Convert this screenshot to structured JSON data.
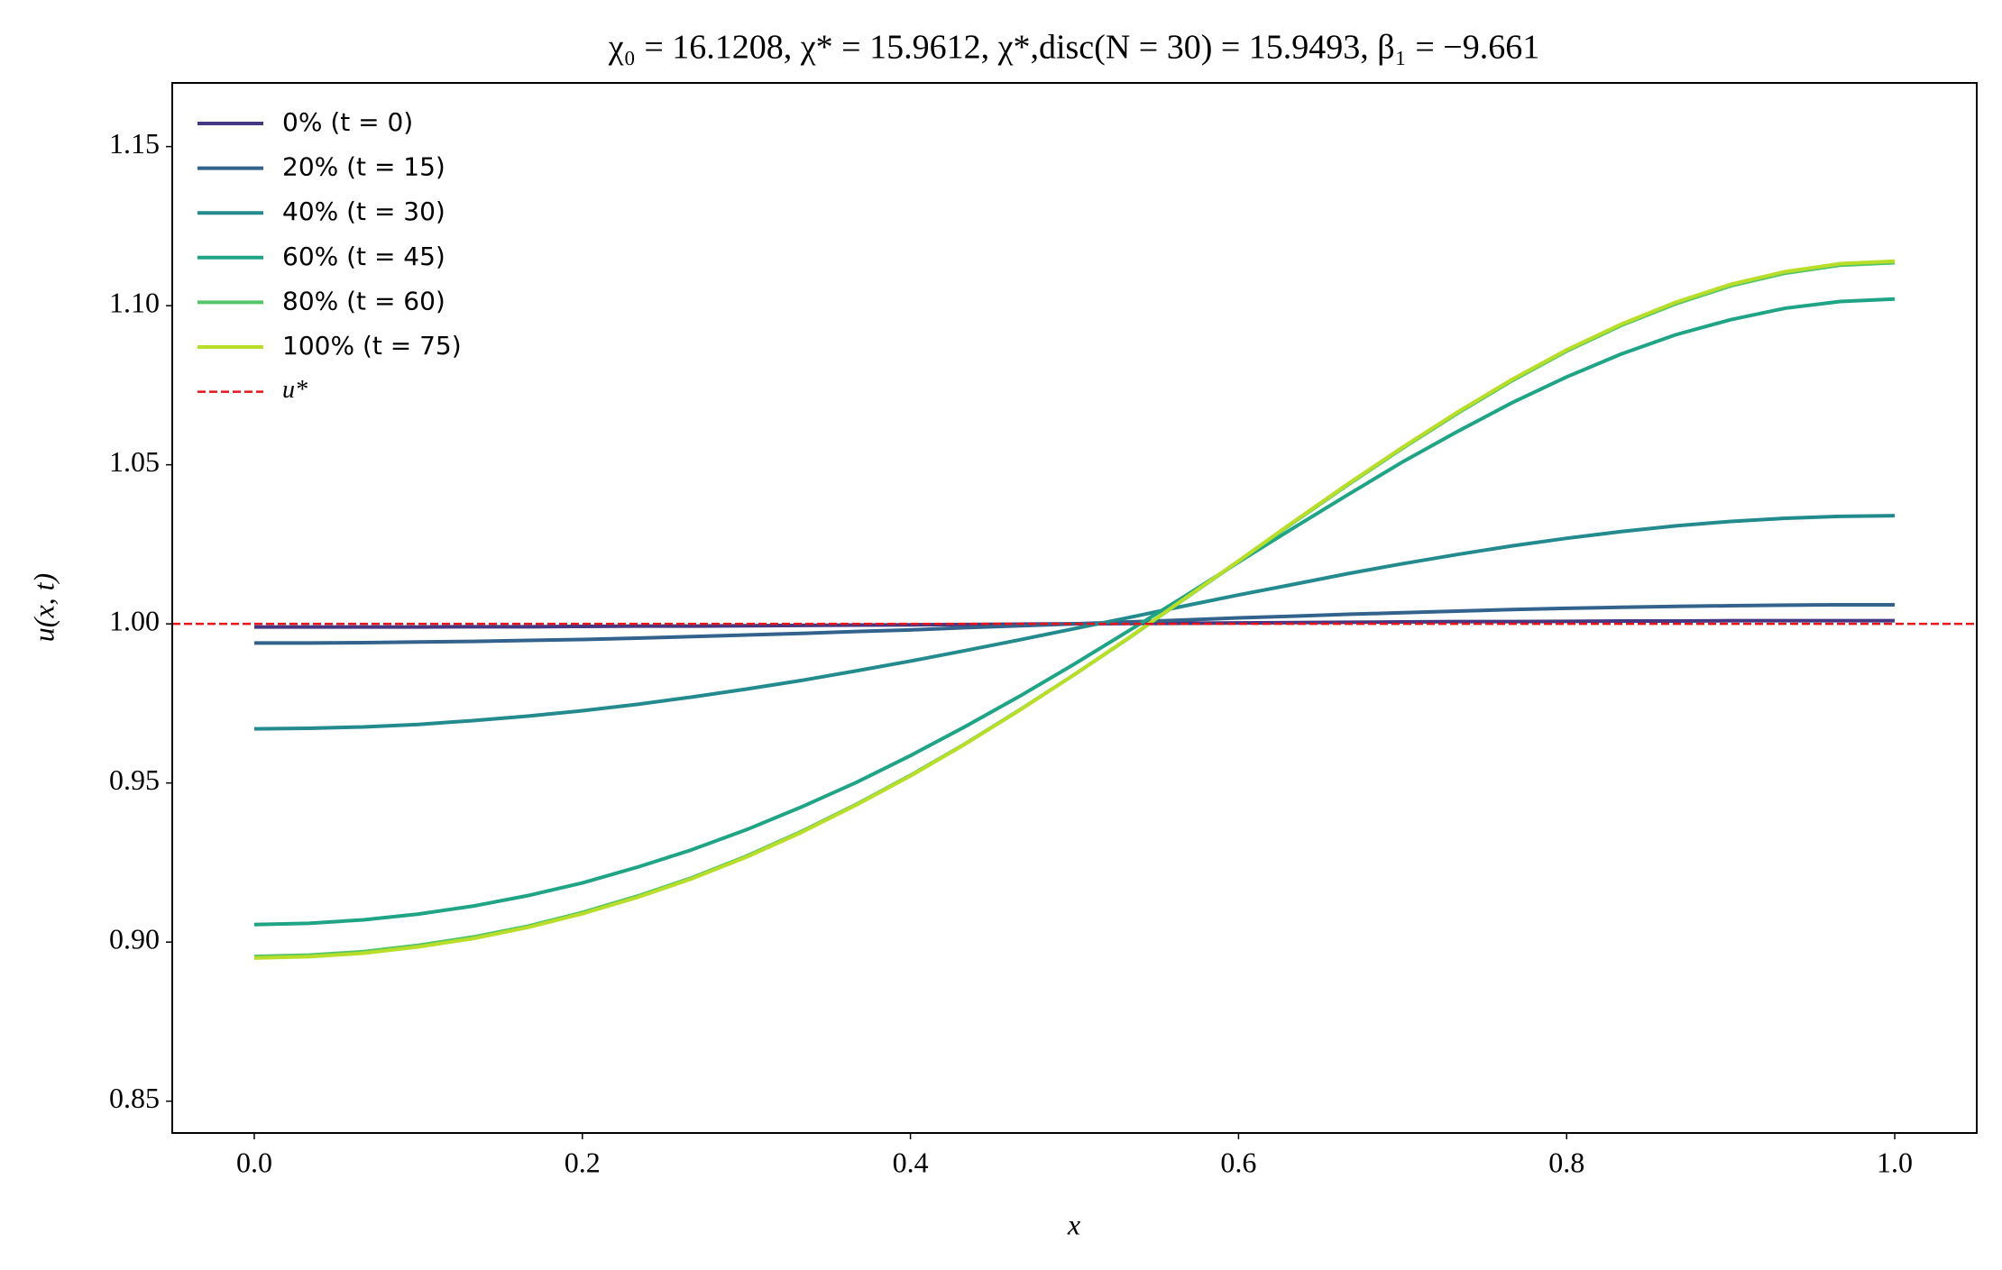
{
  "chart_data": {
    "type": "line",
    "title": "χ₀ = 16.1208,  χ* = 15.9612,  χ*,disc(N = 30) = 15.9493,  β₁ = −9.661",
    "x_label": "x",
    "y_label": "u(x, t)",
    "x": [
      0,
      0.0333,
      0.0667,
      0.1,
      0.1333,
      0.1667,
      0.2,
      0.2333,
      0.2667,
      0.3,
      0.3333,
      0.3667,
      0.4,
      0.4333,
      0.4667,
      0.5,
      0.5333,
      0.5667,
      0.6,
      0.6333,
      0.6667,
      0.7,
      0.7333,
      0.7667,
      0.8,
      0.8333,
      0.8667,
      0.9,
      0.9333,
      0.9667,
      1
    ],
    "series": [
      {
        "name": "0% (t = 0)",
        "color": "#453781",
        "values": [
          0.999,
          0.999,
          0.999,
          0.999,
          0.9991,
          0.9991,
          0.9992,
          0.9993,
          0.9993,
          0.9994,
          0.9995,
          0.9996,
          0.9997,
          0.9998,
          0.9999,
          1.0,
          1.0001,
          1.0002,
          1.0003,
          1.0004,
          1.0005,
          1.0006,
          1.0007,
          1.0007,
          1.0008,
          1.0009,
          1.0009,
          1.001,
          1.001,
          1.001,
          1.001
        ]
      },
      {
        "name": "20% (t = 15)",
        "color": "#33638d",
        "values": [
          0.994,
          0.994,
          0.9941,
          0.9943,
          0.9945,
          0.9948,
          0.9951,
          0.9955,
          0.996,
          0.9965,
          0.997,
          0.9976,
          0.9981,
          0.9988,
          0.9994,
          1.0,
          1.0006,
          1.0012,
          1.0019,
          1.0024,
          1.003,
          1.0035,
          1.004,
          1.0045,
          1.0049,
          1.0052,
          1.0055,
          1.0057,
          1.0059,
          1.006,
          1.006
        ]
      },
      {
        "name": "40% (t = 30)",
        "color": "#238a8d",
        "values": [
          0.967,
          0.9672,
          0.9676,
          0.9684,
          0.9696,
          0.971,
          0.9727,
          0.9747,
          0.977,
          0.9795,
          0.9822,
          0.9852,
          0.9883,
          0.9916,
          0.995,
          0.9985,
          1.002,
          1.0056,
          1.0091,
          1.0124,
          1.0158,
          1.0189,
          1.0218,
          1.0245,
          1.0269,
          1.029,
          1.0308,
          1.0322,
          1.0332,
          1.0338,
          1.034
        ]
      },
      {
        "name": "60% (t = 45)",
        "color": "#20a486",
        "values": [
          0.9055,
          0.9059,
          0.907,
          0.9088,
          0.9113,
          0.9146,
          0.9186,
          0.9235,
          0.929,
          0.9353,
          0.9424,
          0.9501,
          0.9586,
          0.9677,
          0.9773,
          0.9874,
          0.9979,
          1.0085,
          1.0194,
          1.0301,
          1.0406,
          1.0509,
          1.0604,
          1.0695,
          1.0776,
          1.0848,
          1.0909,
          1.0956,
          1.0992,
          1.1013,
          1.1021
        ]
      },
      {
        "name": "80% (t = 60)",
        "color": "#55c667",
        "values": [
          0.8955,
          0.8959,
          0.897,
          0.899,
          0.9016,
          0.905,
          0.9093,
          0.9144,
          0.9202,
          0.927,
          0.9347,
          0.9432,
          0.9524,
          0.9623,
          0.973,
          0.9841,
          0.9956,
          1.0077,
          1.0196,
          1.0318,
          1.0437,
          1.0552,
          1.0661,
          1.0764,
          1.0857,
          1.0938,
          1.1006,
          1.1062,
          1.1102,
          1.1127,
          1.1135
        ]
      },
      {
        "name": "100% (t = 75)",
        "color": "#b8de29",
        "values": [
          0.895,
          0.8954,
          0.8965,
          0.8985,
          0.9011,
          0.9046,
          0.9089,
          0.914,
          0.9199,
          0.9267,
          0.9344,
          0.943,
          0.9522,
          0.9622,
          0.9729,
          0.9841,
          0.9957,
          1.0078,
          1.0198,
          1.032,
          1.044,
          1.0555,
          1.0665,
          1.0768,
          1.0861,
          1.0942,
          1.1011,
          1.1067,
          1.1107,
          1.1132,
          1.114
        ]
      }
    ],
    "reference_line": {
      "value": 1.0,
      "label": "u*",
      "color": "#e8141b"
    },
    "xlim": [
      -0.05,
      1.05
    ],
    "xticks": [
      {
        "value": 0,
        "label": "0.0"
      },
      0.2,
      0.4,
      0.6,
      0.8,
      {
        "value": 1,
        "label": "1.0"
      }
    ],
    "ylim": [
      0.84,
      1.17
    ],
    "yticks": [
      0.85,
      {
        "value": 0.9,
        "label": "0.90"
      },
      0.95,
      {
        "value": 1.0,
        "label": "1.00"
      },
      1.05,
      {
        "value": 1.1,
        "label": "1.10"
      },
      1.15
    ],
    "grid": false,
    "legend": "upper left"
  }
}
